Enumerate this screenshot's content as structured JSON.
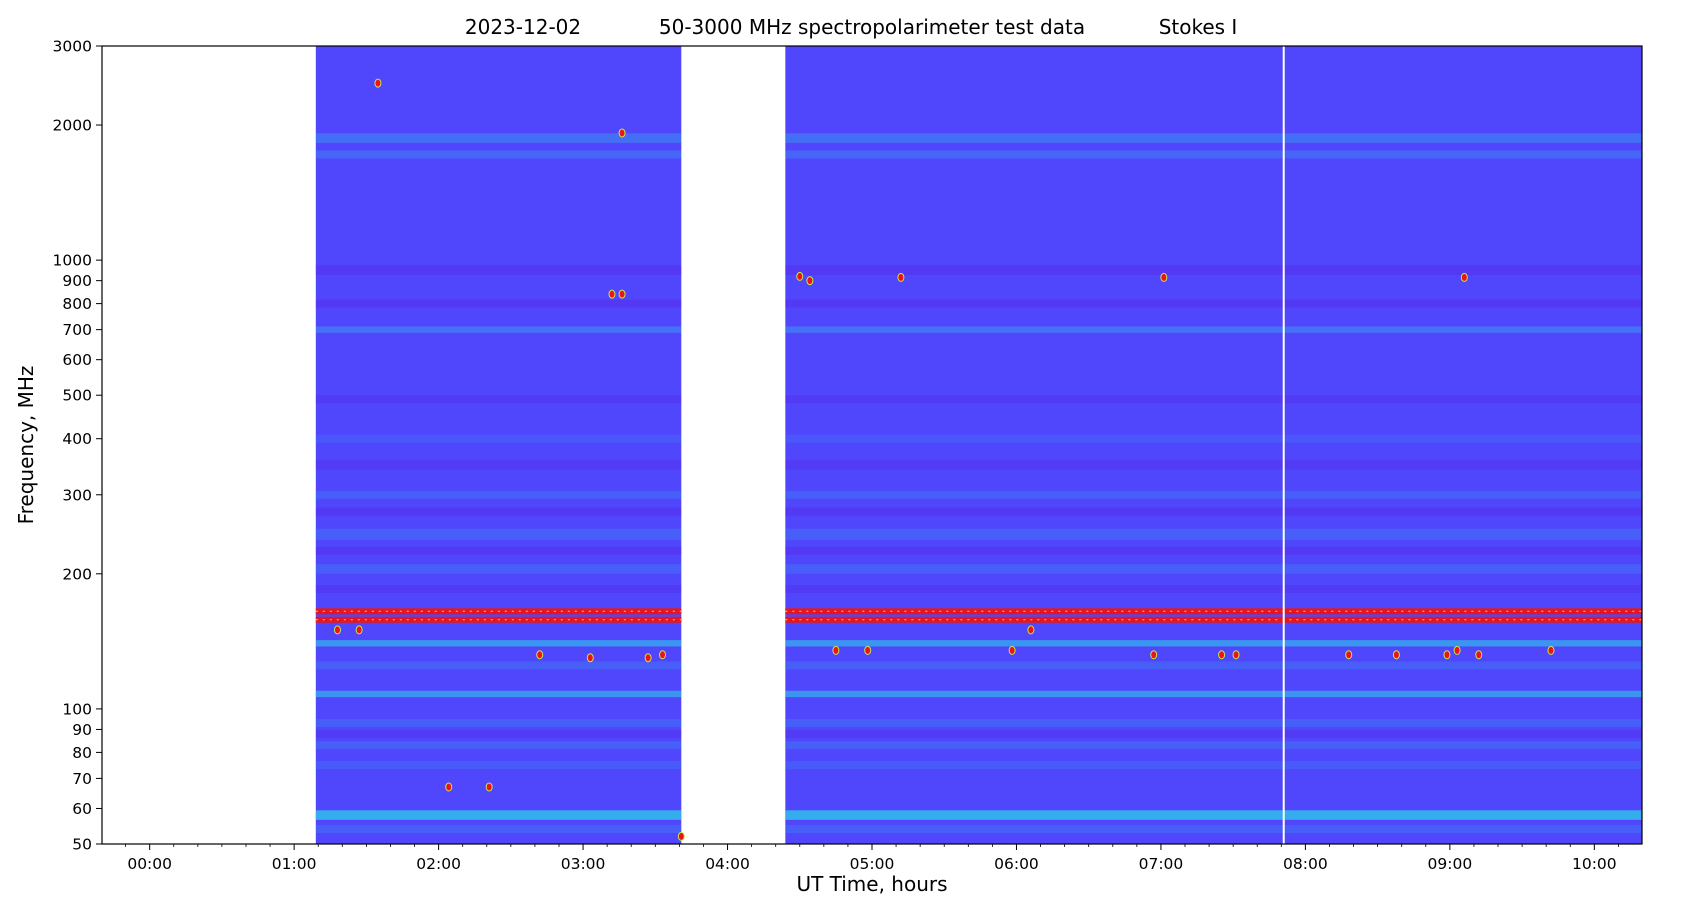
{
  "chart_data": {
    "type": "heatmap",
    "title": {
      "date": "2023-12-02",
      "main": "50-3000 MHz spectropolarimeter test data",
      "parameter": "Stokes I"
    },
    "xlabel": "UT Time, hours",
    "ylabel": "Frequency, MHz",
    "x_scale": "time (hours)",
    "y_scale": "log",
    "xlim": [
      -0.33,
      10.33
    ],
    "ylim": [
      50,
      3000
    ],
    "x_ticks": [
      {
        "value": 0,
        "label": "00:00"
      },
      {
        "value": 1,
        "label": "01:00"
      },
      {
        "value": 2,
        "label": "02:00"
      },
      {
        "value": 3,
        "label": "03:00"
      },
      {
        "value": 4,
        "label": "04:00"
      },
      {
        "value": 5,
        "label": "05:00"
      },
      {
        "value": 6,
        "label": "06:00"
      },
      {
        "value": 7,
        "label": "07:00"
      },
      {
        "value": 8,
        "label": "08:00"
      },
      {
        "value": 9,
        "label": "09:00"
      },
      {
        "value": 10,
        "label": "10:00"
      }
    ],
    "y_ticks": [
      {
        "value": 50,
        "label": "50"
      },
      {
        "value": 60,
        "label": "60"
      },
      {
        "value": 70,
        "label": "70"
      },
      {
        "value": 80,
        "label": "80"
      },
      {
        "value": 90,
        "label": "90"
      },
      {
        "value": 100,
        "label": "100"
      },
      {
        "value": 200,
        "label": "200"
      },
      {
        "value": 300,
        "label": "300"
      },
      {
        "value": 400,
        "label": "400"
      },
      {
        "value": 500,
        "label": "500"
      },
      {
        "value": 600,
        "label": "600"
      },
      {
        "value": 700,
        "label": "700"
      },
      {
        "value": 800,
        "label": "800"
      },
      {
        "value": 900,
        "label": "900"
      },
      {
        "value": 1000,
        "label": "1000"
      },
      {
        "value": 2000,
        "label": "2000"
      },
      {
        "value": 3000,
        "label": "3000"
      }
    ],
    "data_segments": [
      {
        "start": 1.15,
        "end": 3.68
      },
      {
        "start": 4.4,
        "end": 10.33
      }
    ],
    "gap_lines": [
      7.85
    ],
    "colors": {
      "background": "#5046fc",
      "rfi_band": "#e8151c",
      "cyan": "#2ad7e8",
      "light_blue": "#3a8cf4",
      "violet": "#5a23e6",
      "yellow": "#c8e64c"
    },
    "bands": [
      {
        "freq": 1870,
        "width": 0.012,
        "level": 0.28,
        "kind": "cyan-faint"
      },
      {
        "freq": 1720,
        "width": 0.01,
        "level": 0.22,
        "kind": "cyan-faint"
      },
      {
        "freq": 950,
        "width": 0.012,
        "level": 0.35,
        "kind": "violet"
      },
      {
        "freq": 800,
        "width": 0.01,
        "level": 0.35,
        "kind": "violet"
      },
      {
        "freq": 700,
        "width": 0.008,
        "level": 0.3,
        "kind": "cyan-faint"
      },
      {
        "freq": 490,
        "width": 0.01,
        "level": 0.3,
        "kind": "violet"
      },
      {
        "freq": 400,
        "width": 0.01,
        "level": 0.25,
        "kind": "light"
      },
      {
        "freq": 350,
        "width": 0.012,
        "level": 0.3,
        "kind": "violet"
      },
      {
        "freq": 300,
        "width": 0.01,
        "level": 0.35,
        "kind": "light"
      },
      {
        "freq": 275,
        "width": 0.01,
        "level": 0.35,
        "kind": "violet"
      },
      {
        "freq": 245,
        "width": 0.014,
        "level": 0.35,
        "kind": "light"
      },
      {
        "freq": 225,
        "width": 0.01,
        "level": 0.4,
        "kind": "violet"
      },
      {
        "freq": 205,
        "width": 0.012,
        "level": 0.35,
        "kind": "light"
      },
      {
        "freq": 185,
        "width": 0.01,
        "level": 0.3,
        "kind": "violet"
      },
      {
        "freq": 140,
        "width": 0.008,
        "level": 0.55,
        "kind": "cyan"
      },
      {
        "freq": 125,
        "width": 0.01,
        "level": 0.35,
        "kind": "light"
      },
      {
        "freq": 108,
        "width": 0.008,
        "level": 0.55,
        "kind": "cyan"
      },
      {
        "freq": 93,
        "width": 0.01,
        "level": 0.35,
        "kind": "light"
      },
      {
        "freq": 88,
        "width": 0.01,
        "level": 0.3,
        "kind": "violet"
      },
      {
        "freq": 83,
        "width": 0.01,
        "level": 0.35,
        "kind": "light"
      },
      {
        "freq": 75,
        "width": 0.01,
        "level": 0.3,
        "kind": "light"
      },
      {
        "freq": 58,
        "width": 0.012,
        "level": 0.7,
        "kind": "cyan"
      },
      {
        "freq": 54,
        "width": 0.01,
        "level": 0.35,
        "kind": "light"
      }
    ],
    "rfi_bands": [
      {
        "freq": 165
      },
      {
        "freq": 158
      }
    ],
    "hot_spots": [
      {
        "t": 1.58,
        "f": 2480
      },
      {
        "t": 3.27,
        "f": 1920
      },
      {
        "t": 3.2,
        "f": 840
      },
      {
        "t": 3.27,
        "f": 840
      },
      {
        "t": 4.5,
        "f": 920
      },
      {
        "t": 4.57,
        "f": 900
      },
      {
        "t": 5.2,
        "f": 915
      },
      {
        "t": 7.02,
        "f": 915
      },
      {
        "t": 9.1,
        "f": 915
      },
      {
        "t": 1.3,
        "f": 150
      },
      {
        "t": 1.45,
        "f": 150
      },
      {
        "t": 2.7,
        "f": 132
      },
      {
        "t": 3.05,
        "f": 130
      },
      {
        "t": 3.45,
        "f": 130
      },
      {
        "t": 3.55,
        "f": 132
      },
      {
        "t": 4.75,
        "f": 135
      },
      {
        "t": 4.97,
        "f": 135
      },
      {
        "t": 5.97,
        "f": 135
      },
      {
        "t": 6.1,
        "f": 150
      },
      {
        "t": 6.95,
        "f": 132
      },
      {
        "t": 7.42,
        "f": 132
      },
      {
        "t": 7.52,
        "f": 132
      },
      {
        "t": 8.3,
        "f": 132
      },
      {
        "t": 8.63,
        "f": 132
      },
      {
        "t": 8.98,
        "f": 132
      },
      {
        "t": 9.05,
        "f": 135
      },
      {
        "t": 9.2,
        "f": 132
      },
      {
        "t": 9.7,
        "f": 135
      },
      {
        "t": 3.68,
        "f": 52
      },
      {
        "t": 2.35,
        "f": 67
      },
      {
        "t": 2.07,
        "f": 67
      }
    ]
  }
}
